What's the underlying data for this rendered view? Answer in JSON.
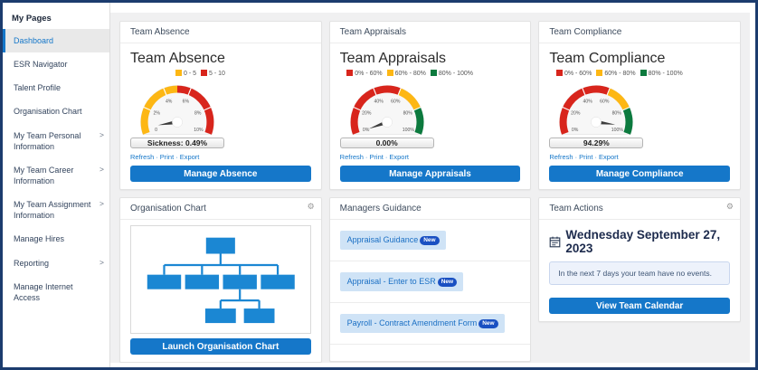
{
  "sidebar": {
    "title": "My Pages",
    "items": [
      {
        "label": "Dashboard",
        "selected": true,
        "expandable": false
      },
      {
        "label": "ESR Navigator",
        "selected": false,
        "expandable": false
      },
      {
        "label": "Talent Profile",
        "selected": false,
        "expandable": false
      },
      {
        "label": "Organisation Chart",
        "selected": false,
        "expandable": false
      },
      {
        "label": "My Team Personal Information",
        "selected": false,
        "expandable": true
      },
      {
        "label": "My Team Career Information",
        "selected": false,
        "expandable": true
      },
      {
        "label": "My Team Assignment Information",
        "selected": false,
        "expandable": true
      },
      {
        "label": "Manage Hires",
        "selected": false,
        "expandable": false
      },
      {
        "label": "Reporting",
        "selected": false,
        "expandable": true
      },
      {
        "label": "Manage Internet Access",
        "selected": false,
        "expandable": false
      }
    ]
  },
  "portlet_links": {
    "refresh": "Refresh",
    "print": "Print",
    "export": "Export",
    "sep": "·"
  },
  "cards": {
    "absence": {
      "header": "Team Absence",
      "title": "Team Absence",
      "button": "Manage Absence"
    },
    "appraisals": {
      "header": "Team Appraisals",
      "title": "Team Appraisals",
      "button": "Manage Appraisals"
    },
    "compliance": {
      "header": "Team Compliance",
      "title": "Team Compliance",
      "button": "Manage Compliance"
    },
    "org_chart": {
      "header": "Organisation Chart",
      "button": "Launch Organisation Chart"
    },
    "guidance": {
      "header": "Managers Guidance",
      "links": [
        {
          "label": "Appraisal Guidance",
          "badge": "New"
        },
        {
          "label": "Appraisal - Enter to ESR",
          "badge": "New"
        },
        {
          "label": "Payroll - Contract Amendment Form",
          "badge": "New"
        }
      ]
    },
    "actions": {
      "header": "Team Actions",
      "date": "Wednesday September 27, 2023",
      "notice": "In the next 7 days your team have no events.",
      "button": "View Team Calendar"
    }
  },
  "chart_data": [
    {
      "type": "gauge",
      "title": "Team Absence",
      "min": 0,
      "max": 10,
      "value": 0.49,
      "value_label": "Sickness: 0.49%",
      "segments": [
        {
          "from": 0,
          "to": 5,
          "color": "#FDB714",
          "label": "0 - 5"
        },
        {
          "from": 5,
          "to": 10,
          "color": "#D8251C",
          "label": "5 - 10"
        }
      ],
      "ticks": [
        {
          "value": 0,
          "label": "0"
        },
        {
          "value": 2,
          "label": "2%"
        },
        {
          "value": 4,
          "label": "4%"
        },
        {
          "value": 6,
          "label": "6%"
        },
        {
          "value": 8,
          "label": "8%"
        },
        {
          "value": 10,
          "label": "10%"
        }
      ]
    },
    {
      "type": "gauge",
      "title": "Team Appraisals",
      "min": 0,
      "max": 100,
      "value": 0.0,
      "value_label": "0.00%",
      "segments": [
        {
          "from": 0,
          "to": 60,
          "color": "#D8251C",
          "label": "0% - 60%"
        },
        {
          "from": 60,
          "to": 80,
          "color": "#FDB714",
          "label": "60% - 80%"
        },
        {
          "from": 80,
          "to": 100,
          "color": "#0C7A3E",
          "label": "80% - 100%"
        }
      ],
      "ticks": [
        {
          "value": 0,
          "label": "0%"
        },
        {
          "value": 20,
          "label": "20%"
        },
        {
          "value": 40,
          "label": "40%"
        },
        {
          "value": 60,
          "label": "60%"
        },
        {
          "value": 80,
          "label": "80%"
        },
        {
          "value": 100,
          "label": "100%"
        }
      ]
    },
    {
      "type": "gauge",
      "title": "Team Compliance",
      "min": 0,
      "max": 100,
      "value": 94.29,
      "value_label": "94.29%",
      "segments": [
        {
          "from": 0,
          "to": 60,
          "color": "#D8251C",
          "label": "0% - 60%"
        },
        {
          "from": 60,
          "to": 80,
          "color": "#FDB714",
          "label": "60% - 80%"
        },
        {
          "from": 80,
          "to": 100,
          "color": "#0C7A3E",
          "label": "80% - 100%"
        }
      ],
      "ticks": [
        {
          "value": 0,
          "label": "0%"
        },
        {
          "value": 20,
          "label": "20%"
        },
        {
          "value": 40,
          "label": "40%"
        },
        {
          "value": 60,
          "label": "60%"
        },
        {
          "value": 80,
          "label": "80%"
        },
        {
          "value": 100,
          "label": "100%"
        }
      ]
    }
  ],
  "colors": {
    "accent_blue": "#1577C9",
    "navy_border": "#1C3C6E",
    "gauge_yellow": "#FDB714",
    "gauge_red": "#D8251C",
    "gauge_green": "#0C7A3E",
    "badge_blue": "#1A50C2",
    "org_box_blue": "#1B87D3"
  }
}
